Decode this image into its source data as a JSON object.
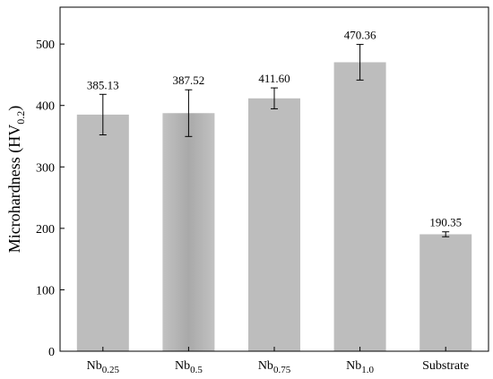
{
  "chart_data": {
    "type": "bar",
    "categories": [
      {
        "base": "Nb",
        "sub": "0.25"
      },
      {
        "base": "Nb",
        "sub": "0.5"
      },
      {
        "base": "Nb",
        "sub": "0.75"
      },
      {
        "base": "Nb",
        "sub": "1.0"
      },
      {
        "base": "Substrate",
        "sub": ""
      }
    ],
    "values": [
      385.13,
      387.52,
      411.6,
      470.36,
      190.35
    ],
    "value_labels": [
      "385.13",
      "387.52",
      "411.60",
      "470.36",
      "190.35"
    ],
    "errors": [
      33,
      38,
      17,
      29,
      4
    ],
    "ylabel": {
      "main": "Microhardness (HV",
      "sub": "0.2",
      "close": ")"
    },
    "ylim": [
      0,
      560
    ],
    "yticks": [
      0,
      100,
      200,
      300,
      400,
      500
    ],
    "grid": false,
    "colors": {
      "bar": "#bdbdbd",
      "bar_gradient_edge": "#a8a8a8",
      "axis": "#000000"
    }
  }
}
